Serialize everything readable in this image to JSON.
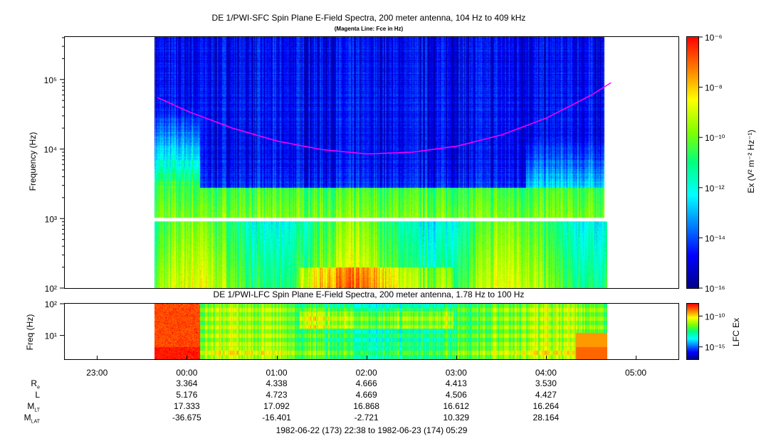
{
  "top_panel": {
    "title": "DE 1/PWI-SFC  Spin Plane E-Field Spectra, 200 meter antenna, 104 Hz to 409 kHz",
    "subtitle": "(Magenta Line: Fce in Hz)",
    "ylabel": "Frequency (Hz)",
    "colorbar_label": "Ex (V² m⁻² Hz⁻¹)"
  },
  "bottom_panel": {
    "title": "DE 1/PWI-LFC  Spin Plane E-Field Spectra, 200 meter antenna, 1.78 Hz to 100 Hz",
    "ylabel": "Freq (Hz)",
    "colorbar_label": "LFC Ex"
  },
  "time_axis": {
    "ticks": [
      "23:00",
      "00:00",
      "01:00",
      "02:00",
      "03:00",
      "04:00",
      "05:00"
    ],
    "range_text": "1982-06-22 (173) 22:38 to 1982-06-23 (174) 05:29"
  },
  "ephemeris": {
    "rows": [
      {
        "label": "R",
        "sub": "e",
        "values": [
          "3.364",
          "4.338",
          "4.666",
          "4.413",
          "3.530"
        ]
      },
      {
        "label": "L",
        "sub": "",
        "values": [
          "5.176",
          "4.723",
          "4.669",
          "4.506",
          "4.427"
        ]
      },
      {
        "label": "M",
        "sub": "LT",
        "values": [
          "17.333",
          "17.092",
          "16.868",
          "16.612",
          "16.264"
        ]
      },
      {
        "label": "M",
        "sub": "LAT",
        "values": [
          "-36.675",
          "-16.401",
          "-2.721",
          "10.329",
          "28.164"
        ]
      }
    ]
  },
  "colors": {
    "fce_line": "#ff00ff",
    "colormap": [
      "#00008b",
      "#0000ff",
      "#0080ff",
      "#00ffff",
      "#00ff80",
      "#80ff00",
      "#ffff00",
      "#ff8000",
      "#ff0000"
    ]
  },
  "chart_data": [
    {
      "type": "heatmap",
      "title": "DE 1/PWI-SFC  Spin Plane E-Field Spectra, 200 meter antenna, 104 Hz to 409 kHz",
      "xlabel": "",
      "ylabel": "Frequency (Hz)",
      "x_range": [
        "22:38",
        "05:29"
      ],
      "data_coverage": [
        "23:40",
        "04:43"
      ],
      "y_scale": "log",
      "ylim": [
        100,
        409000
      ],
      "y_tick_labels": [
        "10²",
        "10³",
        "10⁴",
        "10⁵"
      ],
      "y_ticks": [
        100,
        1000,
        10000,
        100000
      ],
      "colorbar": {
        "scale": "log",
        "range": [
          1e-16,
          1e-06
        ],
        "tick_labels": [
          "10⁻¹⁶",
          "10⁻¹⁴",
          "10⁻¹²",
          "10⁻¹⁰",
          "10⁻⁸",
          "10⁻⁶"
        ],
        "ticks": [
          1e-16,
          1e-14,
          1e-12,
          1e-10,
          1e-08,
          1e-06
        ]
      },
      "fce_line": {
        "x": [
          "23:40",
          "00:00",
          "00:30",
          "01:00",
          "01:30",
          "02:00",
          "02:30",
          "03:00",
          "03:30",
          "04:00",
          "04:30",
          "04:43"
        ],
        "y": [
          55000,
          35000,
          20000,
          13000,
          9800,
          8500,
          9000,
          11000,
          16000,
          28000,
          60000,
          90000
        ]
      }
    },
    {
      "type": "heatmap",
      "title": "DE 1/PWI-LFC  Spin Plane E-Field Spectra, 200 meter antenna, 1.78 Hz to 100 Hz",
      "xlabel": "",
      "ylabel": "Freq (Hz)",
      "x_range": [
        "22:38",
        "05:29"
      ],
      "data_coverage": [
        "23:40",
        "04:43"
      ],
      "y_scale": "log",
      "ylim": [
        1.78,
        100
      ],
      "y_tick_labels": [
        "10¹",
        "10²"
      ],
      "y_ticks": [
        10,
        100
      ],
      "colorbar": {
        "scale": "log",
        "tick_labels": [
          "10⁻¹⁰",
          "10⁻¹⁵"
        ],
        "ticks": [
          1e-10,
          1e-15
        ]
      }
    }
  ]
}
